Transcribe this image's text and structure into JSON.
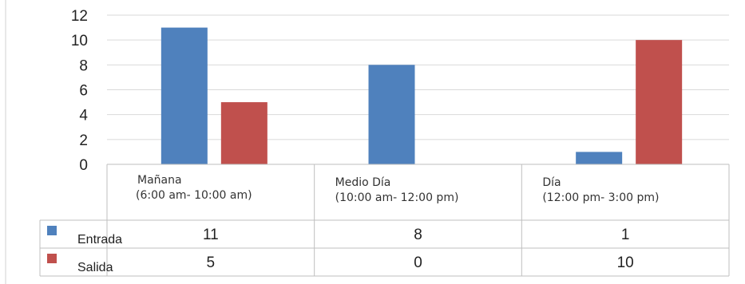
{
  "chart_data": {
    "type": "bar",
    "categories": [
      [
        "Mañana",
        "(6:00 am- 10:00 am)"
      ],
      [
        "Medio Día",
        "(10:00 am- 12:00 pm)"
      ],
      [
        "Día",
        "(12:00 pm- 3:00 pm)"
      ]
    ],
    "series": [
      {
        "name": "Entrada",
        "values": [
          11,
          8,
          1
        ],
        "color": "#4F81BD"
      },
      {
        "name": "Salida",
        "values": [
          5,
          0,
          10
        ],
        "color": "#C0504D"
      }
    ],
    "ylim": [
      0,
      12
    ],
    "yticks": [
      0,
      2,
      4,
      6,
      8,
      10,
      12
    ],
    "grid": true,
    "legend": "data-table"
  }
}
